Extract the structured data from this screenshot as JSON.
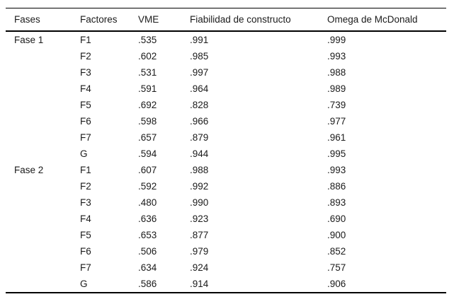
{
  "table": {
    "headers": [
      "Fases",
      "Factores",
      "VME",
      "Fiabilidad de constructo",
      "Omega de McDonald"
    ],
    "columns": [
      "fase",
      "factor",
      "vme",
      "fiabilidad",
      "omega"
    ],
    "rows": [
      {
        "fase": "Fase 1",
        "factor": "F1",
        "vme": ".535",
        "fiabilidad": ".991",
        "omega": ".999"
      },
      {
        "fase": "",
        "factor": "F2",
        "vme": ".602",
        "fiabilidad": ".985",
        "omega": ".993"
      },
      {
        "fase": "",
        "factor": "F3",
        "vme": ".531",
        "fiabilidad": ".997",
        "omega": ".988"
      },
      {
        "fase": "",
        "factor": "F4",
        "vme": ".591",
        "fiabilidad": ".964",
        "omega": ".989"
      },
      {
        "fase": "",
        "factor": "F5",
        "vme": ".692",
        "fiabilidad": ".828",
        "omega": ".739"
      },
      {
        "fase": "",
        "factor": "F6",
        "vme": ".598",
        "fiabilidad": ".966",
        "omega": ".977"
      },
      {
        "fase": "",
        "factor": "F7",
        "vme": ".657",
        "fiabilidad": ".879",
        "omega": ".961"
      },
      {
        "fase": "",
        "factor": "G",
        "vme": ".594",
        "fiabilidad": ".944",
        "omega": ".995"
      },
      {
        "fase": "Fase 2",
        "factor": "F1",
        "vme": ".607",
        "fiabilidad": ".988",
        "omega": ".993"
      },
      {
        "fase": "",
        "factor": "F2",
        "vme": ".592",
        "fiabilidad": ".992",
        "omega": ".886"
      },
      {
        "fase": "",
        "factor": "F3",
        "vme": ".480",
        "fiabilidad": ".990",
        "omega": ".893"
      },
      {
        "fase": "",
        "factor": "F4",
        "vme": ".636",
        "fiabilidad": ".923",
        "omega": ".690"
      },
      {
        "fase": "",
        "factor": "F5",
        "vme": ".653",
        "fiabilidad": ".877",
        "omega": ".900"
      },
      {
        "fase": "",
        "factor": "F6",
        "vme": ".506",
        "fiabilidad": ".979",
        "omega": ".852"
      },
      {
        "fase": "",
        "factor": "F7",
        "vme": ".634",
        "fiabilidad": ".924",
        "omega": ".757"
      },
      {
        "fase": "",
        "factor": "G",
        "vme": ".586",
        "fiabilidad": ".914",
        "omega": ".906"
      }
    ]
  },
  "colors": {
    "text": "#1b1b1b",
    "rule": "#000000",
    "background": "#ffffff"
  }
}
